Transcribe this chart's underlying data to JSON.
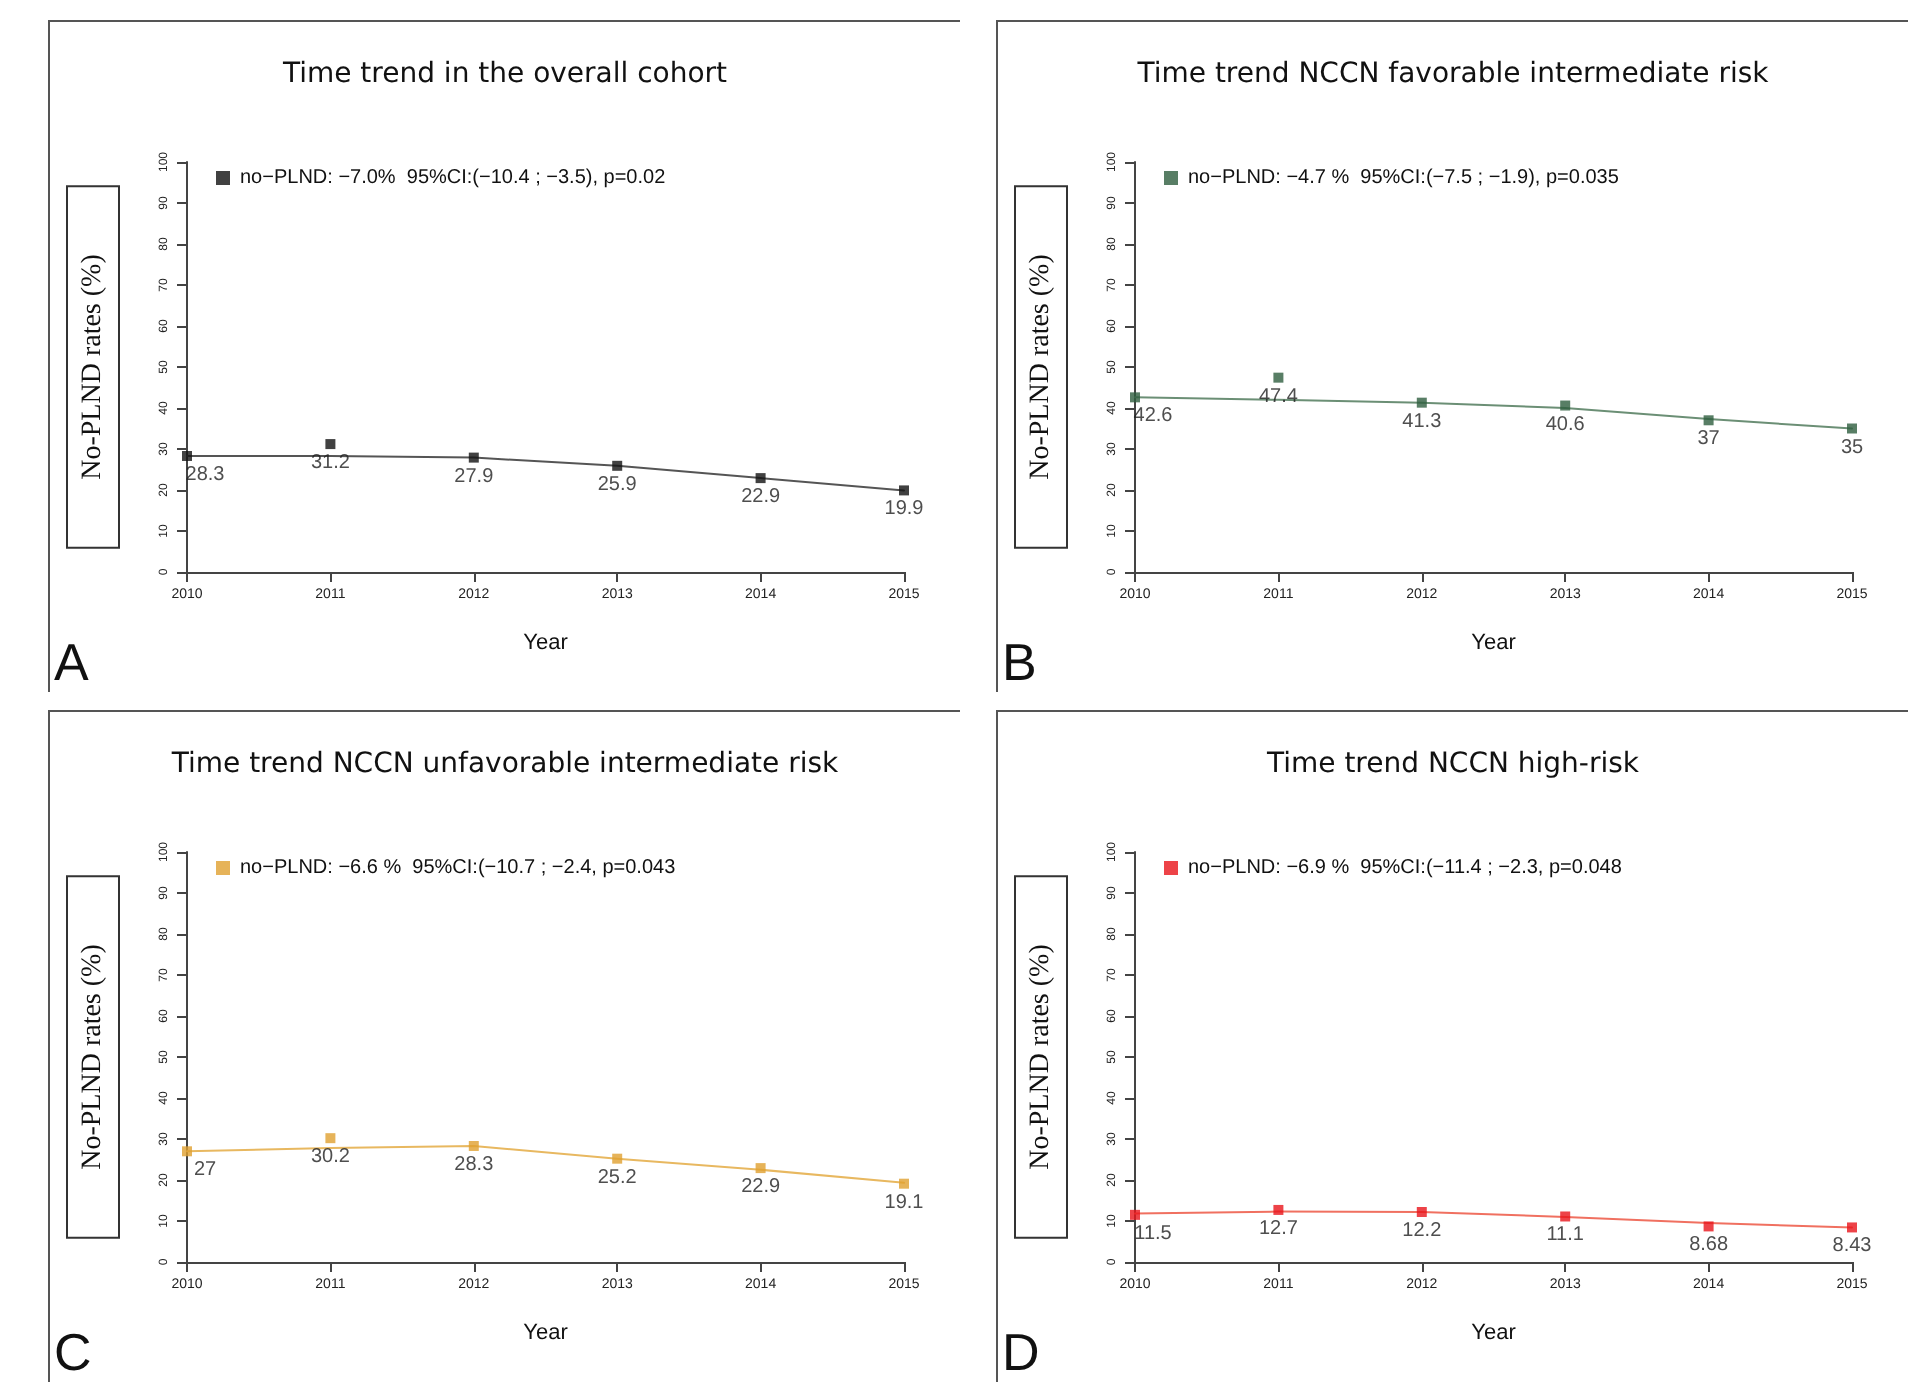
{
  "chart_data": [
    {
      "type": "scatter",
      "title": "Time trend in the overall cohort",
      "xlabel": "Year",
      "ylabel": "No-PLND rates (%)",
      "annotations": [
        "A"
      ],
      "categories": [
        "2010",
        "2011",
        "2012",
        "2013",
        "2014",
        "2015"
      ],
      "ylim": [
        0,
        100
      ],
      "yticks": [
        0,
        10,
        20,
        30,
        40,
        50,
        60,
        70,
        80,
        90,
        100
      ],
      "grid": false,
      "legend": "top left",
      "series": [
        {
          "name": "no−PLND: −7.0%  95%CI:(−10.4 ; −3.5), p=0.02",
          "type": "scatter",
          "marker": "square",
          "color": "#111111",
          "values": [
            28.3,
            31.2,
            27.9,
            25.9,
            22.9,
            19.9
          ],
          "value_labels": [
            "28.3",
            "31.2",
            "27.9",
            "25.9",
            "22.9",
            "19.9"
          ]
        },
        {
          "type": "line",
          "marker": "none",
          "line_style": "solid",
          "color": "#555555",
          "values": [
            28.3,
            28.3,
            27.9,
            25.9,
            22.9,
            19.9
          ]
        }
      ]
    },
    {
      "type": "scatter",
      "title": "Time trend NCCN favorable intermediate risk",
      "xlabel": "Year",
      "ylabel": "No-PLND rates (%)",
      "annotations": [
        "B"
      ],
      "categories": [
        "2010",
        "2011",
        "2012",
        "2013",
        "2014",
        "2015"
      ],
      "ylim": [
        0,
        100
      ],
      "yticks": [
        0,
        10,
        20,
        30,
        40,
        50,
        60,
        70,
        80,
        90,
        100
      ],
      "grid": false,
      "legend": "top left",
      "series": [
        {
          "name": "no−PLND: −4.7 %  95%CI:(−7.5 ; −1.9), p=0.035",
          "type": "scatter",
          "marker": "square",
          "color": "#2e5e3e",
          "values": [
            42.6,
            47.4,
            41.3,
            40.6,
            37,
            35
          ],
          "value_labels": [
            "42.6",
            "47.4",
            "41.3",
            "40.6",
            "37",
            "35"
          ]
        },
        {
          "type": "line",
          "marker": "none",
          "line_style": "solid",
          "color": "#6b8f75",
          "values": [
            42.6,
            42,
            41.3,
            40,
            37.3,
            35
          ]
        }
      ]
    },
    {
      "type": "scatter",
      "title": "Time trend NCCN unfavorable intermediate risk",
      "xlabel": "Year",
      "ylabel": "No-PLND rates (%)",
      "annotations": [
        "C"
      ],
      "categories": [
        "2010",
        "2011",
        "2012",
        "2013",
        "2014",
        "2015"
      ],
      "ylim": [
        0,
        100
      ],
      "yticks": [
        0,
        10,
        20,
        30,
        40,
        50,
        60,
        70,
        80,
        90,
        100
      ],
      "grid": false,
      "legend": "top left",
      "series": [
        {
          "name": "no−PLND: −6.6 %  95%CI:(−10.7 ; −2.4, p=0.043",
          "type": "scatter",
          "marker": "square",
          "color": "#e0a030",
          "values": [
            27,
            30.2,
            28.3,
            25.2,
            22.9,
            19.1
          ],
          "value_labels": [
            "27",
            "30.2",
            "28.3",
            "25.2",
            "22.9",
            "19.1"
          ]
        },
        {
          "type": "line",
          "marker": "none",
          "line_style": "solid",
          "color": "#e8b860",
          "values": [
            27,
            27.8,
            28.3,
            25.2,
            22.5,
            19.3
          ]
        }
      ]
    },
    {
      "type": "scatter",
      "title": "Time trend NCCN high-risk",
      "xlabel": "Year",
      "ylabel": "No-PLND rates (%)",
      "annotations": [
        "D"
      ],
      "categories": [
        "2010",
        "2011",
        "2012",
        "2013",
        "2014",
        "2015"
      ],
      "ylim": [
        0,
        100
      ],
      "yticks": [
        0,
        10,
        20,
        30,
        40,
        50,
        60,
        70,
        80,
        90,
        100
      ],
      "grid": false,
      "legend": "top left",
      "series": [
        {
          "name": "no−PLND: −6.9 %  95%CI:(−11.4 ; −2.3, p=0.048",
          "type": "scatter",
          "marker": "square",
          "color": "#e8141a",
          "values": [
            11.5,
            12.7,
            12.2,
            11.1,
            8.68,
            8.43
          ],
          "value_labels": [
            "11.5",
            "12.7",
            "12.2",
            "11.1",
            "8.68",
            "8.43"
          ]
        },
        {
          "type": "line",
          "marker": "none",
          "line_style": "solid",
          "color": "#f07060",
          "values": [
            11.8,
            12.3,
            12.2,
            11,
            9.5,
            8.4
          ]
        }
      ]
    }
  ]
}
